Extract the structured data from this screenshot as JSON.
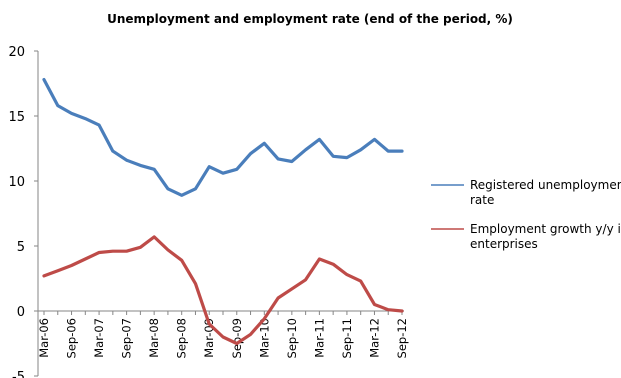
{
  "chart_data": {
    "type": "line",
    "title": "Unemployment and employment rate (end of the period, %)",
    "xlabel": "",
    "ylabel": "",
    "ylim": [
      -5,
      20
    ],
    "yticks": [
      "20",
      "15",
      "10",
      "5",
      "0",
      "-5"
    ],
    "grid": false,
    "legend_position": "right",
    "categories": [
      "Mar-06",
      "Jun-06",
      "Sep-06",
      "Dec-06",
      "Mar-07",
      "Jun-07",
      "Sep-07",
      "Dec-07",
      "Mar-08",
      "Jun-08",
      "Sep-08",
      "Dec-08",
      "Mar-09",
      "Jun-09",
      "Sep-09",
      "Dec-09",
      "Mar-10",
      "Jun-10",
      "Sep-10",
      "Dec-10",
      "Mar-11",
      "Jun-11",
      "Sep-11",
      "Dec-11",
      "Mar-12",
      "Jun-12",
      "Sep-12"
    ],
    "x_tick_labels": [
      "Mar-06",
      "Sep-06",
      "Mar-07",
      "Sep-07",
      "Mar-08",
      "Sep-08",
      "Mar-09",
      "Sep-09",
      "Mar-10",
      "Sep-10",
      "Mar-11",
      "Sep-11",
      "Mar-12",
      "Sep-12"
    ],
    "series": [
      {
        "name": "Registered unemployment rate",
        "color": "#4A7EBB",
        "values": [
          17.8,
          15.8,
          15.2,
          14.8,
          14.3,
          12.3,
          11.6,
          11.2,
          10.9,
          9.4,
          8.9,
          9.4,
          11.1,
          10.6,
          10.9,
          12.1,
          12.9,
          11.7,
          11.5,
          12.4,
          13.2,
          11.9,
          11.8,
          12.4,
          13.2,
          12.3,
          12.3
        ]
      },
      {
        "name": "Employment growth y/y in enterprises",
        "color": "#BE4B48",
        "values": [
          2.7,
          3.1,
          3.5,
          4.0,
          4.5,
          4.6,
          4.6,
          4.9,
          5.7,
          4.7,
          3.9,
          2.1,
          -1.0,
          -2.0,
          -2.5,
          -1.8,
          -0.6,
          1.0,
          1.7,
          2.4,
          4.0,
          3.6,
          2.8,
          2.3,
          0.5,
          0.1,
          0.0
        ]
      }
    ]
  }
}
